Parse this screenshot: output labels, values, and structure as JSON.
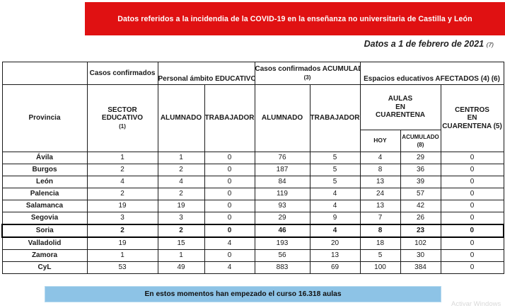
{
  "colors": {
    "banner_red": "#E01112",
    "footer_blue": "#8DC3E6",
    "border_black": "#1a1a1a"
  },
  "banner": {
    "text": "Datos referidos a la incidendia de la COVID-19 en la enseñanza no universitaria de Castilla y León"
  },
  "date_note": {
    "text": "Datos a 1 de febrero de 2021",
    "ref": "(7)"
  },
  "table": {
    "group_headers": {
      "casos": "Casos confirmados",
      "personal": "Personal ámbito EDUCATIVO (2)",
      "acumulados": "Casos confirmados ACUMULADOS",
      "acumulados_ref": "(3)",
      "espacios": "Espacios educativos AFECTADOS (4) (6)"
    },
    "headers": {
      "provincia": "Provincia",
      "sector": "SECTOR EDUCATIVO",
      "sector_ref": "(1)",
      "alumnado": "ALUMNADO",
      "trabajadores": "TRABAJADORES",
      "alumnado_acum": "ALUMNADO",
      "trabajadores_acum": "TRABAJADORES",
      "aulas": [
        "AULAS",
        "EN",
        "CUARENTENA"
      ],
      "hoy": "HOY",
      "acumulado": "ACUMULADO",
      "acumulado_ref": "(8)",
      "centros": [
        "CENTROS",
        "EN",
        "CUARENTENA (5)"
      ]
    },
    "rows": [
      {
        "provincia": "Ávila",
        "values": [
          1,
          1,
          0,
          76,
          5,
          4,
          29,
          0
        ],
        "highlight": false
      },
      {
        "provincia": "Burgos",
        "values": [
          2,
          2,
          0,
          187,
          5,
          8,
          36,
          0
        ],
        "highlight": false
      },
      {
        "provincia": "León",
        "values": [
          4,
          4,
          0,
          84,
          5,
          13,
          39,
          0
        ],
        "highlight": false
      },
      {
        "provincia": "Palencia",
        "values": [
          2,
          2,
          0,
          119,
          4,
          24,
          57,
          0
        ],
        "highlight": false
      },
      {
        "provincia": "Salamanca",
        "values": [
          19,
          19,
          0,
          93,
          4,
          13,
          42,
          0
        ],
        "highlight": false
      },
      {
        "provincia": "Segovia",
        "values": [
          3,
          3,
          0,
          29,
          9,
          7,
          26,
          0
        ],
        "highlight": false
      },
      {
        "provincia": "Soria",
        "values": [
          2,
          2,
          0,
          46,
          4,
          8,
          23,
          0
        ],
        "highlight": true
      },
      {
        "provincia": "Valladolid",
        "values": [
          19,
          15,
          4,
          193,
          20,
          18,
          102,
          0
        ],
        "highlight": false
      },
      {
        "provincia": "Zamora",
        "values": [
          1,
          1,
          0,
          56,
          13,
          5,
          30,
          0
        ],
        "highlight": false
      },
      {
        "provincia": "CyL",
        "values": [
          53,
          49,
          4,
          883,
          69,
          100,
          384,
          0
        ],
        "highlight": false
      }
    ]
  },
  "footer": {
    "text": "En estos momentos han empezado el curso 16.318 aulas"
  },
  "watermark": "Activar Windows"
}
